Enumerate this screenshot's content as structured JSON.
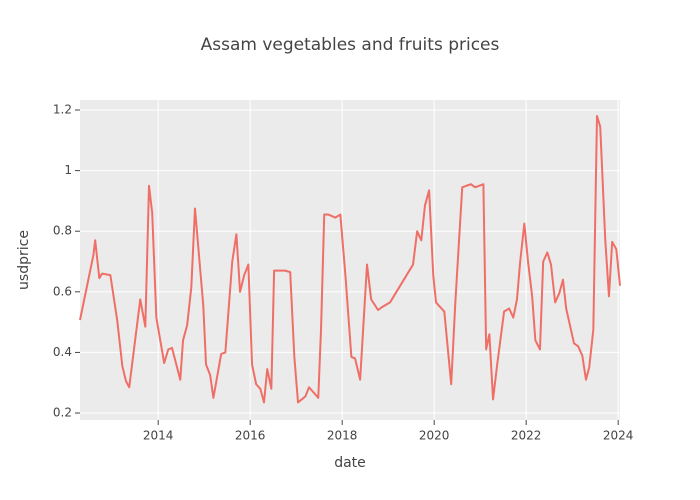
{
  "chart_data": {
    "type": "line",
    "title": "Assam vegetables and fruits prices",
    "x_label": "date",
    "y_label": "usdprice",
    "color": "#ef6f67",
    "grid": true,
    "x": [
      2012.3,
      2012.59,
      2012.63,
      2012.72,
      2012.78,
      2012.96,
      2013.11,
      2013.22,
      2013.3,
      2013.37,
      2013.61,
      2013.72,
      2013.8,
      2013.87,
      2013.96,
      2014.13,
      2014.22,
      2014.3,
      2014.48,
      2014.54,
      2014.63,
      2014.72,
      2014.8,
      2014.98,
      2015.04,
      2015.13,
      2015.2,
      2015.37,
      2015.46,
      2015.61,
      2015.7,
      2015.78,
      2015.87,
      2015.96,
      2016.04,
      2016.13,
      2016.22,
      2016.3,
      2016.37,
      2016.46,
      2016.52,
      2016.76,
      2016.87,
      2016.96,
      2017.04,
      2017.2,
      2017.28,
      2017.48,
      2017.54,
      2017.61,
      2017.7,
      2017.85,
      2017.96,
      2018.07,
      2018.2,
      2018.28,
      2018.39,
      2018.54,
      2018.63,
      2018.78,
      2018.87,
      2019.04,
      2019.54,
      2019.63,
      2019.72,
      2019.8,
      2019.89,
      2019.98,
      2020.04,
      2020.22,
      2020.37,
      2020.46,
      2020.61,
      2020.7,
      2020.8,
      2020.89,
      2021.07,
      2021.13,
      2021.2,
      2021.28,
      2021.37,
      2021.52,
      2021.63,
      2021.72,
      2021.8,
      2021.87,
      2021.96,
      2022.04,
      2022.13,
      2022.2,
      2022.3,
      2022.37,
      2022.46,
      2022.54,
      2022.63,
      2022.72,
      2022.8,
      2022.87,
      2023.04,
      2023.13,
      2023.22,
      2023.3,
      2023.37,
      2023.46,
      2023.54,
      2023.61,
      2023.72,
      2023.8,
      2023.87,
      2023.96,
      2024.04
    ],
    "values": [
      0.507,
      0.72,
      0.77,
      0.645,
      0.66,
      0.655,
      0.505,
      0.355,
      0.305,
      0.285,
      0.575,
      0.485,
      0.95,
      0.86,
      0.515,
      0.365,
      0.41,
      0.415,
      0.31,
      0.44,
      0.49,
      0.615,
      0.875,
      0.555,
      0.36,
      0.325,
      0.25,
      0.395,
      0.4,
      0.7,
      0.79,
      0.6,
      0.655,
      0.69,
      0.36,
      0.295,
      0.28,
      0.235,
      0.345,
      0.28,
      0.67,
      0.67,
      0.665,
      0.385,
      0.235,
      0.255,
      0.285,
      0.25,
      0.475,
      0.855,
      0.855,
      0.845,
      0.855,
      0.655,
      0.385,
      0.38,
      0.31,
      0.69,
      0.575,
      0.54,
      0.55,
      0.565,
      0.69,
      0.8,
      0.77,
      0.885,
      0.935,
      0.655,
      0.565,
      0.535,
      0.295,
      0.565,
      0.945,
      0.95,
      0.955,
      0.945,
      0.955,
      0.41,
      0.46,
      0.245,
      0.36,
      0.535,
      0.545,
      0.515,
      0.575,
      0.7,
      0.825,
      0.7,
      0.585,
      0.44,
      0.41,
      0.7,
      0.73,
      0.69,
      0.565,
      0.595,
      0.64,
      0.545,
      0.43,
      0.42,
      0.39,
      0.31,
      0.35,
      0.475,
      1.18,
      1.145,
      0.77,
      0.585,
      0.765,
      0.74,
      0.62
    ],
    "xlim": [
      2012.3,
      2024.04
    ],
    "xticks": [
      2014,
      2016,
      2018,
      2020,
      2022,
      2024
    ],
    "ylim": [
      0.177,
      1.233
    ],
    "yticks": [
      0.2,
      0.4,
      0.6,
      0.8,
      1,
      1.2
    ]
  }
}
